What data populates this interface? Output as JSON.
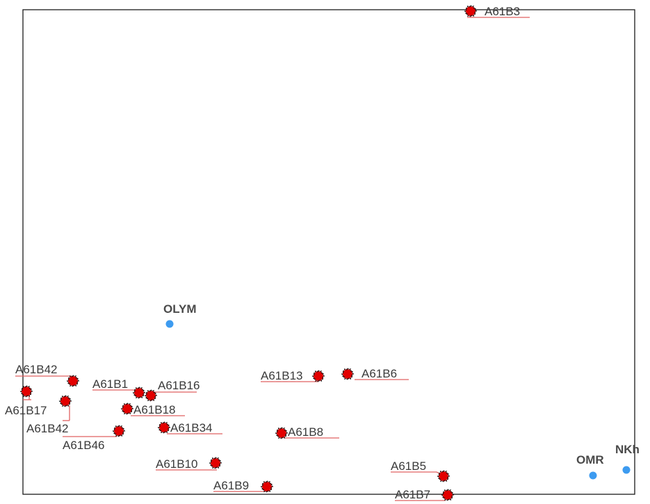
{
  "map": {
    "colors": {
      "frame": "#1a1a1a",
      "sample_fill": "#e30000",
      "sample_outline": "#111111",
      "station_fill": "#3d9bf0",
      "sample_text": "#3a3a3a",
      "station_text": "#4a4a4a",
      "label_underline": "#e06060"
    },
    "stations": [
      {
        "id": "olym",
        "label": "OLYM"
      },
      {
        "id": "omr",
        "label": "OMR"
      },
      {
        "id": "nkh",
        "label": "NKh"
      }
    ],
    "samples": [
      {
        "id": "b3",
        "label": "A61B3"
      },
      {
        "id": "b42a",
        "label": "A61B42"
      },
      {
        "id": "b17",
        "label": "A61B17"
      },
      {
        "id": "b42b",
        "label": "A61B42"
      },
      {
        "id": "b46",
        "label": "A61B46"
      },
      {
        "id": "b1",
        "label": "A61B1"
      },
      {
        "id": "b16",
        "label": "A61B16"
      },
      {
        "id": "b18",
        "label": "A61B18"
      },
      {
        "id": "b34",
        "label": "A61B34"
      },
      {
        "id": "b10",
        "label": "A61B10"
      },
      {
        "id": "b9",
        "label": "A61B9"
      },
      {
        "id": "b13",
        "label": "A61B13"
      },
      {
        "id": "b6",
        "label": "A61B6"
      },
      {
        "id": "b8",
        "label": "A61B8"
      },
      {
        "id": "b5",
        "label": "A61B5"
      },
      {
        "id": "b7",
        "label": "A61B7"
      }
    ]
  }
}
